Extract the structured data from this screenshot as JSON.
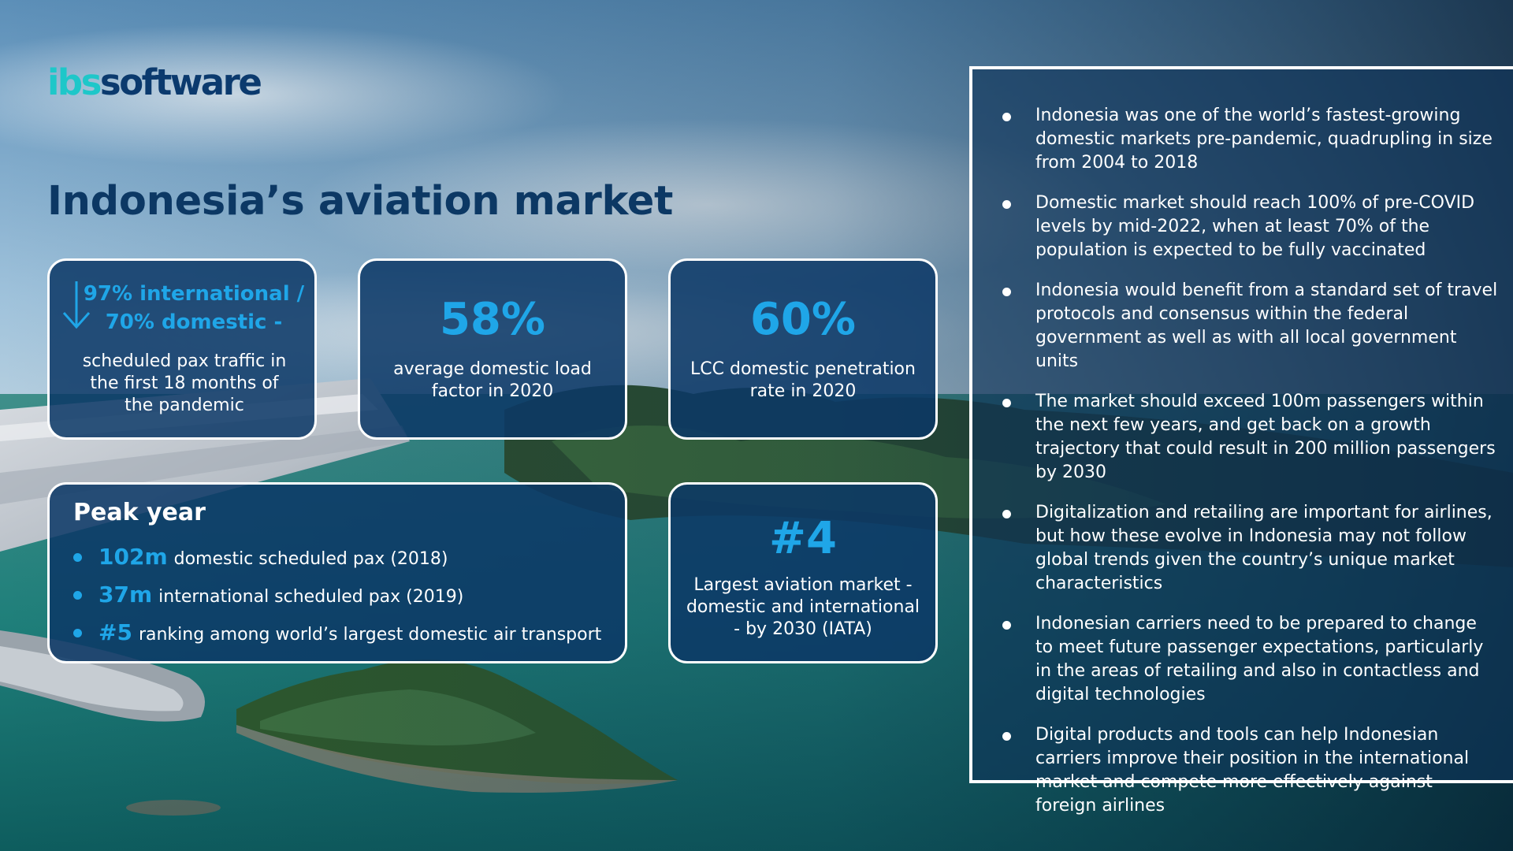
{
  "logo": {
    "part1": "ibs",
    "part2": "software"
  },
  "title": "Indonesia’s aviation market",
  "stats": {
    "card1": {
      "highlight": "97% international / 70% domestic -",
      "caption": "scheduled pax traffic in the first 18 months of the pandemic",
      "icon": "arrow-down-icon"
    },
    "card2": {
      "value": "58%",
      "caption": "average domestic load factor in 2020"
    },
    "card3": {
      "value": "60%",
      "caption": "LCC domestic penetration rate in 2020"
    },
    "card4": {
      "value": "#4",
      "caption": "Largest aviation market - domestic and international - by 2030 (IATA)"
    }
  },
  "peak": {
    "title": "Peak year",
    "items": [
      {
        "value": "102m",
        "text": "domestic scheduled pax (2018)"
      },
      {
        "value": "37m",
        "text": "international scheduled pax (2019)"
      },
      {
        "value": "#5",
        "text": "ranking among world’s largest domestic air transport"
      }
    ]
  },
  "bullets": [
    "Indonesia was one of the world’s fastest-growing domestic markets pre-pandemic, quadrupling in size from 2004 to 2018",
    "Domestic market should reach 100% of pre-COVID levels by mid-2022, when at least 70% of the population is expected to be fully vaccinated",
    "Indonesia would benefit from a standard set of travel protocols and consensus within the federal government as well as with all local government units",
    "The market should exceed 100m passengers within the next few years, and get back on a growth trajectory that could result in 200 million passengers by 2030",
    "Digitalization and retailing are important for airlines, but how these evolve in Indonesia may not follow global trends given the country’s unique market characteristics",
    "Indonesian carriers need to be prepared to change to meet future passenger expectations, particularly in the areas of retailing and also in contactless and digital technologies",
    "Digital products and tools can help Indonesian carriers improve their position in the international market and compete more effectively against foreign airlines"
  ],
  "colors": {
    "accent": "#1fa6e8",
    "logo_teal": "#1ec7c9",
    "navy": "#0c3864",
    "card_bg": "#0c3866"
  }
}
